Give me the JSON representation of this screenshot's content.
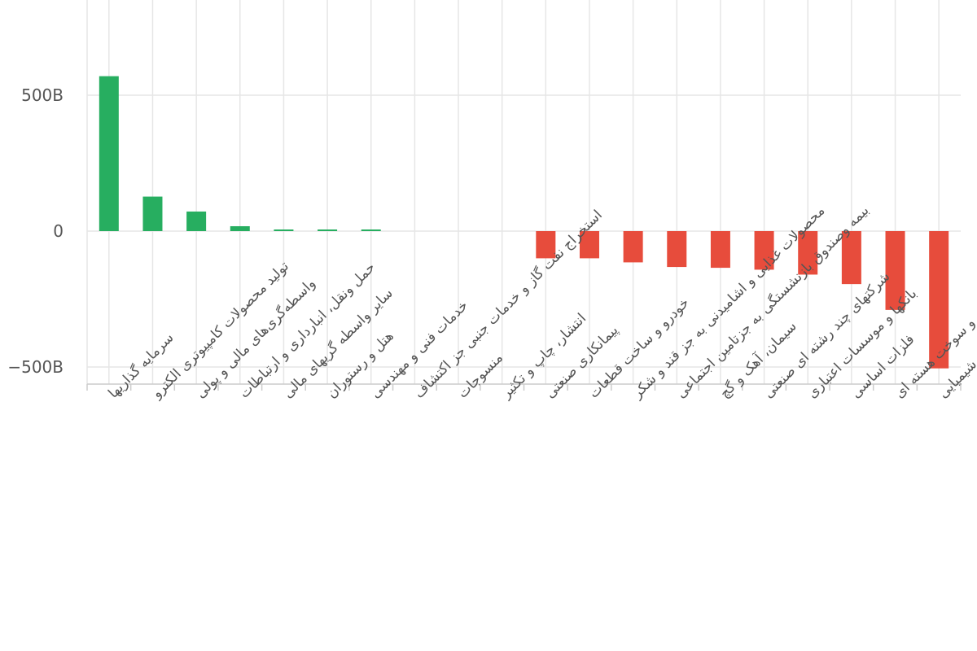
{
  "chart_data": {
    "type": "bar",
    "title": "",
    "xlabel": "",
    "ylabel": "",
    "ylim": [
      -520,
      820
    ],
    "yticks": [
      {
        "value": 500,
        "label": "500B"
      },
      {
        "value": 0,
        "label": "0"
      },
      {
        "value": -500,
        "label": "−500B"
      }
    ],
    "grid": true,
    "legend": "none",
    "colors": {
      "positive": "#27ae60",
      "negative": "#e74c3c",
      "grid": "#e6e6e6",
      "axis": "#cccccc"
    },
    "categories": [
      "سرمایه گذاریها",
      "تولید محصولات کامپیوتری الکترو",
      "واسطه‌گری‌های مالی و پولی",
      "حمل ونقل، انبارداری و ارتباطات",
      "سایر واسطه گریهای مالی",
      "هتل و رستوران",
      "خدمات فنی و مهندسی",
      "استخراج نفت گاز و خدمات جنبی جز اکتشاف",
      "منسوجات",
      "انتشار، چاپ و تکثیر",
      "پیمانکاری صنعتی",
      "خودرو و ساخت قطعات",
      "محصولات غذایی و اشامیدنی به جز قند و شکر",
      "بیمه وصندوق بازنشستگی به جزتامین اجتماعی",
      "سیمان، آهک و گچ",
      "شرکتهای چند رشته ای صنعتی",
      "بانکها و موسسات اعتباری",
      "فلزات اساسی",
      "فراورده های نفتی، کک و سوخت هسته ای",
      "محصولات شیمیایی"
    ],
    "values": [
      570,
      127,
      72,
      18,
      6,
      5,
      5,
      0,
      0,
      0,
      -100,
      -100,
      -115,
      -132,
      -135,
      -142,
      -160,
      -195,
      -290,
      -505
    ]
  }
}
